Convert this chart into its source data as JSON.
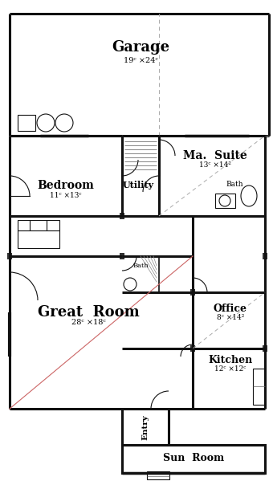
{
  "background": "#ffffff",
  "wall_color": "#111111",
  "dashed_color": "#aaaaaa",
  "diagonal_color": "#cc6666",
  "rooms": {
    "garage": {
      "label": "Garage",
      "size": "19ᶜ ×24ᶜ"
    },
    "bedroom": {
      "label": "Bedroom",
      "size": "11ᶜ ×13ᶜ"
    },
    "utility": {
      "label": "Utility"
    },
    "ma_suite": {
      "label": "Ma.  Suite",
      "size": "13ᶜ ×14²"
    },
    "great_room": {
      "label": "Great  Room",
      "size": "28ᶜ ×18ᶜ"
    },
    "bath1": {
      "label": "Bath"
    },
    "bath2": {
      "label": "Bath"
    },
    "office": {
      "label": "Office",
      "size": "8ᶜ ×14²"
    },
    "kitchen": {
      "label": "Kitchen",
      "size": "12ᶜ ×12ᶜ"
    },
    "entry": {
      "label": "Entry"
    },
    "sun_room": {
      "label": "Sun  Room"
    }
  }
}
